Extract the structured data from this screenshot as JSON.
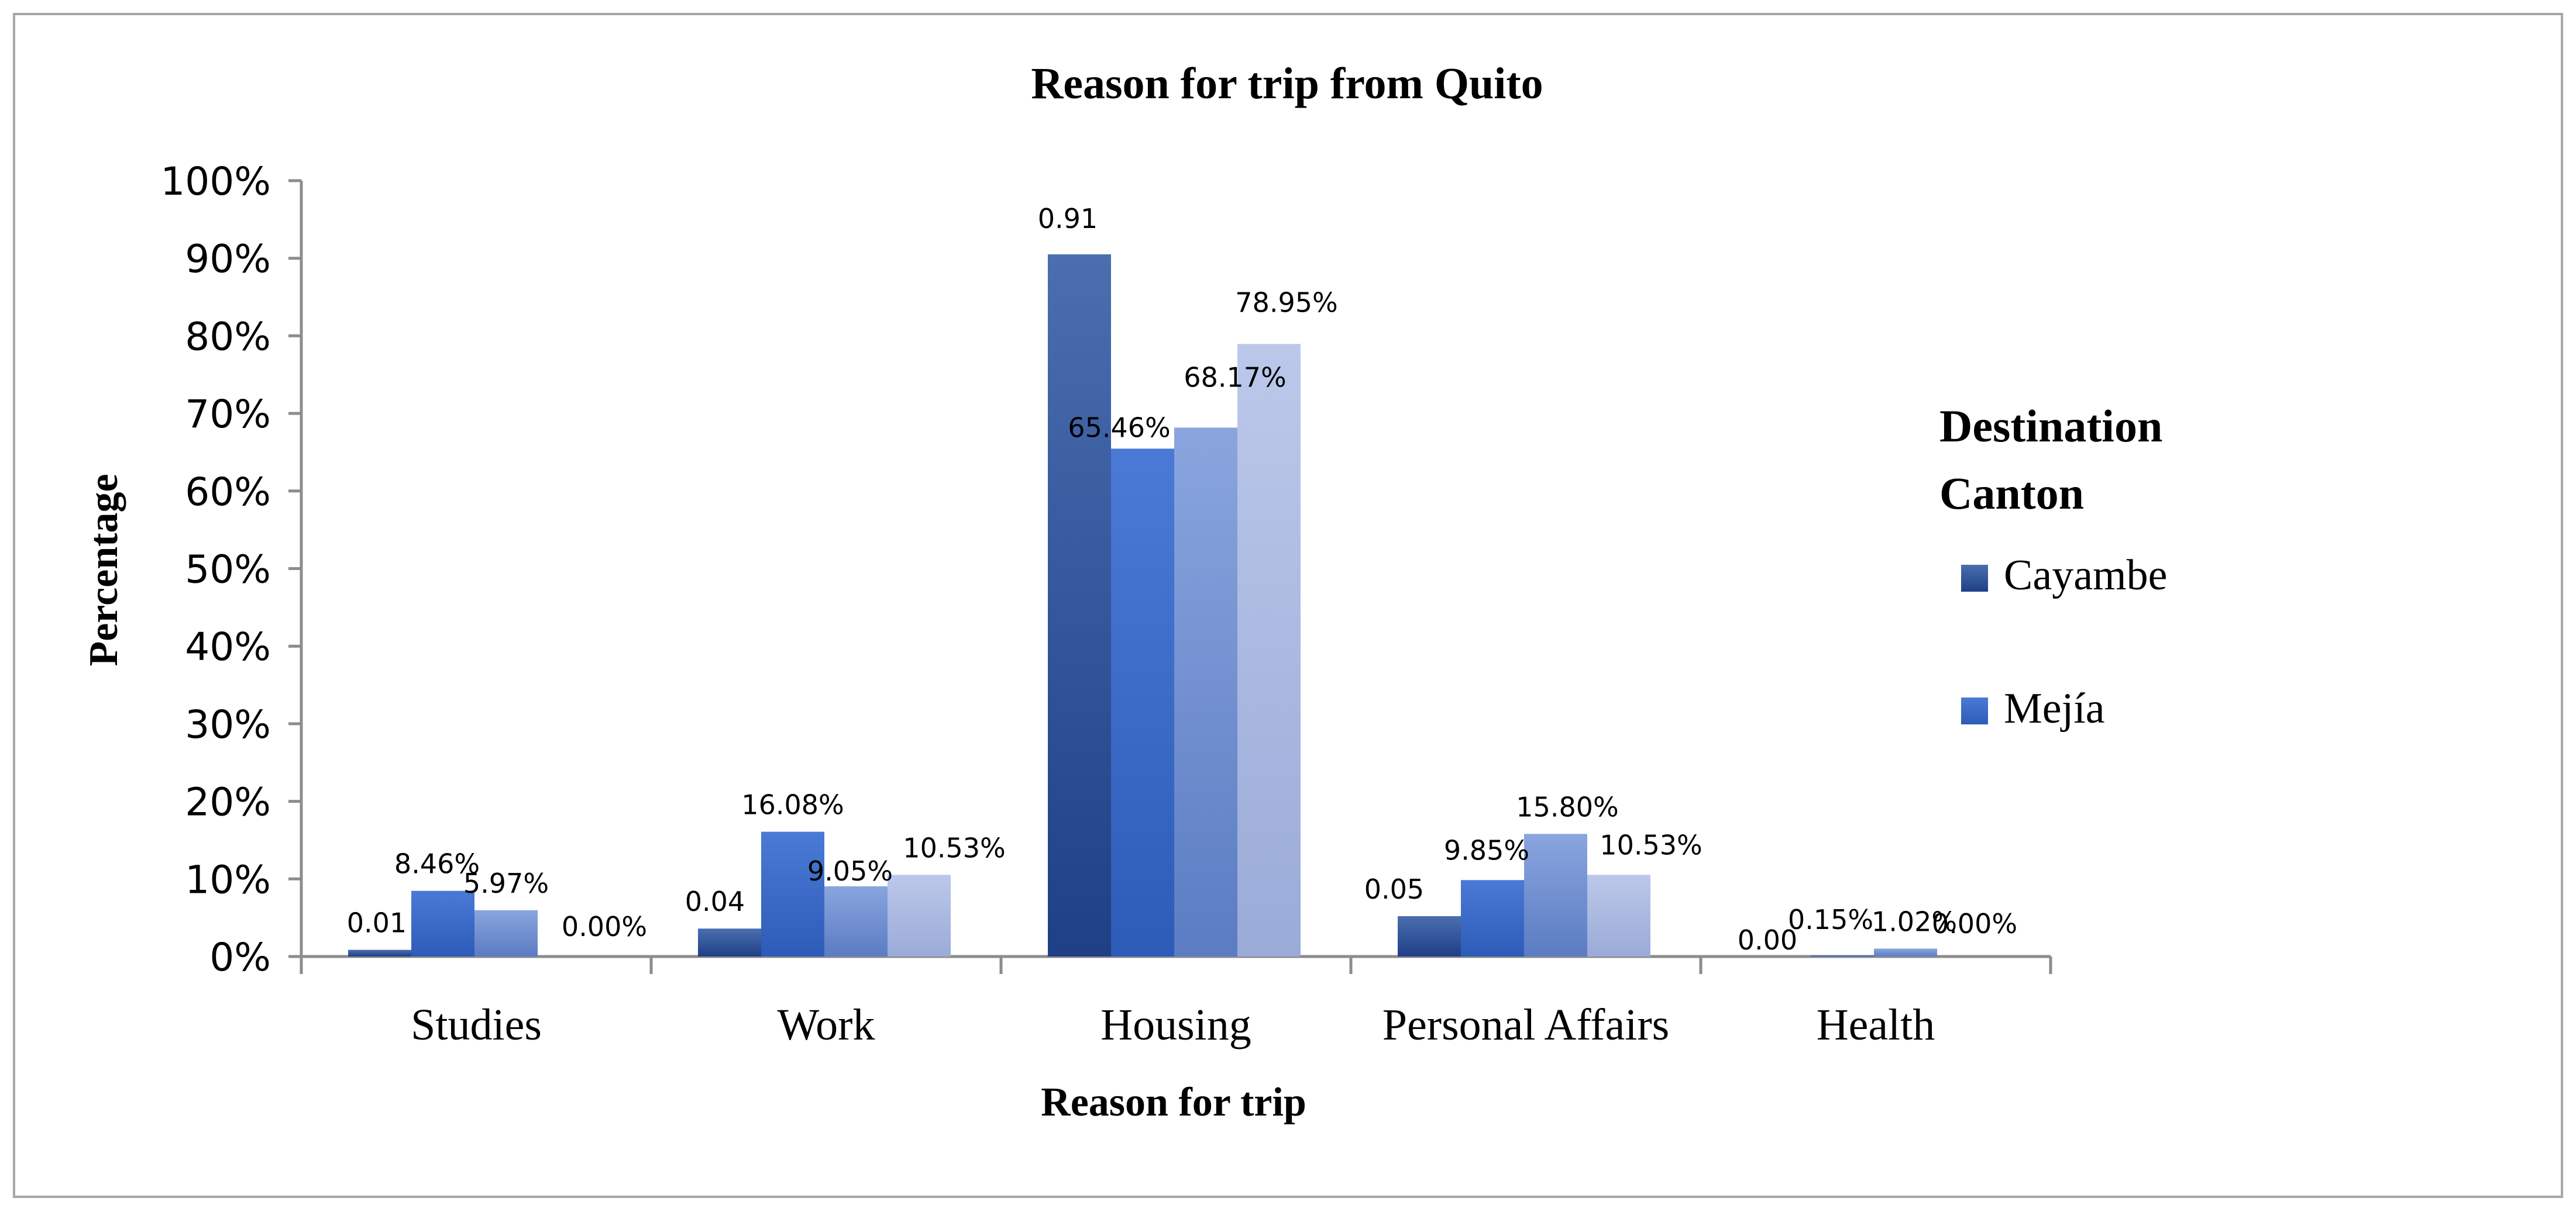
{
  "chart_data": {
    "type": "bar",
    "title": "Reason for trip from Quito",
    "xlabel": "Reason for trip",
    "ylabel": "Percentage",
    "ylim": [
      0,
      100
    ],
    "y_ticks": [
      "0%",
      "10%",
      "20%",
      "30%",
      "40%",
      "50%",
      "60%",
      "70%",
      "80%",
      "90%",
      "100%"
    ],
    "categories": [
      "Studies",
      "Work",
      "Housing",
      "Personal Affairs",
      "Health"
    ],
    "series": [
      {
        "name": "Cayambe",
        "values": [
          0.86,
          3.6,
          90.5,
          5.2,
          0.0
        ],
        "labels": [
          "0.01",
          "0.04",
          "0.91",
          "0.05",
          "0.00"
        ],
        "color": "#2f55a2"
      },
      {
        "name": "Mejía",
        "values": [
          8.46,
          16.08,
          65.46,
          9.85,
          0.15
        ],
        "labels": [
          "8.46%",
          "16.08%",
          "65.46%",
          "9.85%",
          "0.15%"
        ],
        "color": "#3c6cc8"
      },
      {
        "values": [
          5.97,
          9.05,
          68.17,
          15.8,
          1.02
        ],
        "labels": [
          "5.97%",
          "9.05%",
          "68.17%",
          "15.80%",
          "1.02%"
        ],
        "color": "#7e98d4"
      },
      {
        "values": [
          0.0,
          10.53,
          78.95,
          10.53,
          0.0
        ],
        "labels": [
          "0.00%",
          "10.53%",
          "78.95%",
          "10.53%",
          "0.00%"
        ],
        "color": "#b3c0e2"
      }
    ],
    "legend": {
      "title": "Destination Canton",
      "placement": "right"
    },
    "grid": false
  }
}
